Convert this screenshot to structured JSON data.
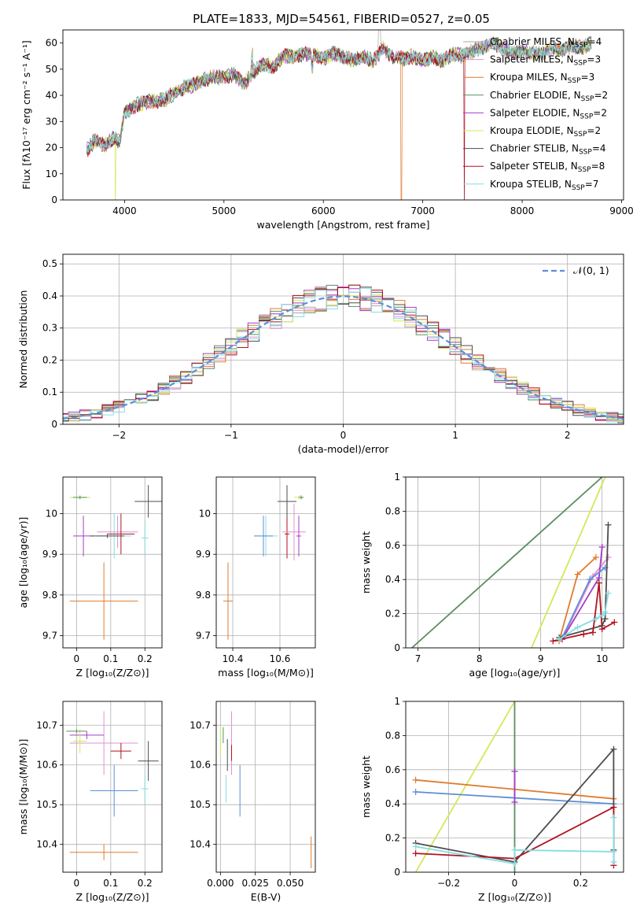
{
  "figure": {
    "title": "PLATE=1833, MJD=54561, FIBERID=0527, z=0.05"
  },
  "colors": {
    "chabrier_miles": "#a7a7a7",
    "salpeter_miles": "#e58fd0",
    "kroupa_miles": "#e07b2e",
    "chabrier_elodie": "#5a8f62",
    "salpeter_elodie": "#a43dc6",
    "kroupa_elodie": "#d2e85a",
    "chabrier_stelib": "#4d4d4d",
    "salpeter_stelib": "#b2121f",
    "kroupa_stelib": "#86dde0",
    "gaussian": "#5b8fd6",
    "grid": "#b0b0b0"
  },
  "chart_data": [
    {
      "id": "spectrum",
      "type": "line",
      "xlabel": "wavelength [Angstrom, rest frame]",
      "ylabel": "Flux [fλ10⁻¹⁷ erg cm⁻² s⁻¹ A⁻¹]",
      "xlim": [
        3380,
        9020
      ],
      "ylim": [
        0,
        65
      ],
      "xticks": [
        4000,
        5000,
        6000,
        7000,
        8000,
        9000
      ],
      "yticks": [
        0,
        10,
        20,
        30,
        40,
        50,
        60
      ],
      "grid": false,
      "legend_placement": "right",
      "legend": [
        {
          "label": "Chabrier MILES, N",
          "sub": "SSP",
          "tail": "=4",
          "color_key": "chabrier_miles"
        },
        {
          "label": "Salpeter MILES, N",
          "sub": "SSP",
          "tail": "=3",
          "color_key": "salpeter_miles"
        },
        {
          "label": "Kroupa MILES, N",
          "sub": "SSP",
          "tail": "=3",
          "color_key": "kroupa_miles"
        },
        {
          "label": "Chabrier ELODIE, N",
          "sub": "SSP",
          "tail": "=2",
          "color_key": "chabrier_elodie"
        },
        {
          "label": "Salpeter ELODIE, N",
          "sub": "SSP",
          "tail": "=2",
          "color_key": "salpeter_elodie"
        },
        {
          "label": "Kroupa ELODIE, N",
          "sub": "SSP",
          "tail": "=2",
          "color_key": "kroupa_elodie"
        },
        {
          "label": "Chabrier STELIB, N",
          "sub": "SSP",
          "tail": "=4",
          "color_key": "chabrier_stelib"
        },
        {
          "label": "Salpeter STELIB, N",
          "sub": "SSP",
          "tail": "=8",
          "color_key": "salpeter_stelib"
        },
        {
          "label": "Kroupa STELIB, N",
          "sub": "SSP",
          "tail": "=7",
          "color_key": "kroupa_stelib"
        }
      ],
      "series_envelope": {
        "x": [
          3620,
          3700,
          3800,
          3900,
          3950,
          4000,
          4100,
          4200,
          4300,
          4400,
          4500,
          4600,
          4700,
          4800,
          4900,
          5000,
          5100,
          5200,
          5300,
          5400,
          5500,
          5600,
          5700,
          5800,
          5900,
          6000,
          6100,
          6200,
          6300,
          6400,
          6500,
          6600,
          6700,
          6800,
          6900,
          7000,
          7100,
          7200,
          7300,
          7400,
          7500,
          7600,
          7700,
          7800,
          7900,
          8000,
          8100,
          8200,
          8300,
          8400,
          8500,
          8600,
          8700
        ],
        "y": [
          19,
          23,
          21,
          24,
          22,
          33,
          36,
          37,
          38,
          38,
          41,
          43,
          44,
          46,
          47,
          47,
          48,
          44,
          49,
          52,
          51,
          55,
          55,
          56,
          56,
          54,
          56,
          55,
          53,
          55,
          53,
          58,
          55,
          54,
          55,
          53,
          55,
          53,
          56,
          55,
          57,
          58,
          60,
          58,
          56,
          57,
          56,
          56,
          58,
          57,
          59,
          58,
          60
        ]
      },
      "series_dropouts": [
        {
          "x": 3910,
          "color_key": "kroupa_elodie"
        },
        {
          "x": 6785,
          "color_key": "kroupa_miles"
        },
        {
          "x": 7420,
          "color_key": "salpeter_stelib"
        }
      ]
    },
    {
      "id": "residual-histogram",
      "type": "line",
      "xlabel": "(data-model)/error",
      "ylabel": "Normed distribution",
      "xlim": [
        -2.5,
        2.5
      ],
      "ylim": [
        0,
        0.53
      ],
      "xticks": [
        -2,
        -1,
        0,
        1,
        2
      ],
      "yticks": [
        0.0,
        0.1,
        0.2,
        0.3,
        0.4,
        0.5
      ],
      "grid": true,
      "legend_placement": "top-right",
      "gaussian_label": "𝒩(0, 1)",
      "bin_width": 0.1
    },
    {
      "id": "z-vs-age",
      "type": "scatter",
      "xlabel": "Z [log₁₀(Z/Z⊙)]",
      "ylabel": "age  [log₁₀(age/yr)]",
      "xlim": [
        -0.04,
        0.25
      ],
      "ylim": [
        9.67,
        10.09
      ],
      "xticks": [
        0.0,
        0.1,
        0.2
      ],
      "yticks": [
        9.7,
        9.8,
        9.9,
        10.0
      ],
      "grid": true,
      "points": [
        {
          "x": 0.08,
          "y": 9.785,
          "xerr": 0.1,
          "yerr": 0.095,
          "color_key": "kroupa_miles"
        },
        {
          "x": 0.02,
          "y": 9.945,
          "xerr": 0.03,
          "yerr": 0.05,
          "color_key": "salpeter_elodie"
        },
        {
          "x": 0.12,
          "y": 9.955,
          "xerr": 0.06,
          "yerr": 0.04,
          "color_key": "salpeter_miles"
        },
        {
          "x": 0.11,
          "y": 9.945,
          "xerr": 0.05,
          "yerr": 0.055,
          "color_key": "kroupa_stelib"
        },
        {
          "x": 0.13,
          "y": 9.95,
          "xerr": 0.04,
          "yerr": 0.05,
          "color_key": "salpeter_stelib"
        },
        {
          "x": 0.2,
          "y": 9.94,
          "xerr": 0.01,
          "yerr": 0.04,
          "color_key": "kroupa_stelib"
        },
        {
          "x": 0.21,
          "y": 10.03,
          "xerr": 0.04,
          "yerr": 0.04,
          "color_key": "chabrier_stelib"
        },
        {
          "x": 0.01,
          "y": 10.04,
          "xerr": 0.03,
          "yerr": 0.005,
          "color_key": "kroupa_elodie"
        },
        {
          "x": 0.01,
          "y": 10.04,
          "xerr": 0.02,
          "yerr": 0.004,
          "color_key": "chabrier_elodie"
        },
        {
          "x": 0.09,
          "y": 9.945,
          "xerr": 0.05,
          "yerr": 0.005,
          "color_key": "chabrier_stelib"
        }
      ]
    },
    {
      "id": "mass-vs-age",
      "type": "scatter",
      "xlabel": "mass [log₁₀(M/M⊙)]",
      "ylabel": "",
      "xlim": [
        10.33,
        10.75
      ],
      "ylim": [
        9.67,
        10.09
      ],
      "xticks": [
        10.4,
        10.6
      ],
      "yticks": [
        9.7,
        9.8,
        9.9,
        10.0
      ],
      "grid": true,
      "points": [
        {
          "x": 10.38,
          "y": 9.785,
          "xerr": 0.02,
          "yerr": 0.095,
          "color_key": "kroupa_miles"
        },
        {
          "x": 10.54,
          "y": 9.945,
          "xerr": 0.05,
          "yerr": 0.05,
          "color_key": "kroupa_stelib"
        },
        {
          "x": 10.53,
          "y": 9.945,
          "xerr": 0.04,
          "yerr": 0.05,
          "color_key": "gaussian"
        },
        {
          "x": 10.63,
          "y": 9.95,
          "xerr": 0.01,
          "yerr": 0.06,
          "color_key": "salpeter_stelib"
        },
        {
          "x": 10.66,
          "y": 9.955,
          "xerr": 0.05,
          "yerr": 0.07,
          "color_key": "salpeter_miles"
        },
        {
          "x": 10.68,
          "y": 9.945,
          "xerr": 0.01,
          "yerr": 0.05,
          "color_key": "salpeter_elodie"
        },
        {
          "x": 10.63,
          "y": 10.03,
          "xerr": 0.04,
          "yerr": 0.04,
          "color_key": "chabrier_stelib"
        },
        {
          "x": 10.68,
          "y": 10.04,
          "xerr": 0.02,
          "yerr": 0.005,
          "color_key": "kroupa_elodie"
        },
        {
          "x": 10.69,
          "y": 10.04,
          "xerr": 0.01,
          "yerr": 0.005,
          "color_key": "chabrier_elodie"
        }
      ]
    },
    {
      "id": "age-vs-massweight",
      "type": "line",
      "xlabel": "age  [log₁₀(age/yr)]",
      "ylabel": "mass weight",
      "xlim": [
        6.8,
        10.35
      ],
      "ylim": [
        0,
        1
      ],
      "xticks": [
        7,
        8,
        9,
        10
      ],
      "yticks": [
        0.0,
        0.2,
        0.4,
        0.6,
        0.8,
        1.0
      ],
      "grid": true,
      "series": [
        {
          "color_key": "chabrier_elodie",
          "x": [
            6.9,
            10.0
          ],
          "y": [
            0.0,
            1.0
          ],
          "markers": false
        },
        {
          "color_key": "kroupa_elodie",
          "x": [
            8.85,
            10.05
          ],
          "y": [
            0.0,
            1.0
          ],
          "markers": false
        },
        {
          "color_key": "kroupa_miles",
          "x": [
            9.3,
            9.6,
            9.9
          ],
          "y": [
            0.04,
            0.43,
            0.53
          ],
          "markers": true
        },
        {
          "color_key": "salpeter_miles",
          "x": [
            9.35,
            9.85,
            10.1
          ],
          "y": [
            0.05,
            0.42,
            0.53
          ],
          "markers": true
        },
        {
          "color_key": "salpeter_elodie",
          "x": [
            9.35,
            9.95,
            10.0
          ],
          "y": [
            0.05,
            0.41,
            0.59
          ],
          "markers": true
        },
        {
          "color_key": "gaussian",
          "x": [
            9.35,
            9.8,
            10.05
          ],
          "y": [
            0.06,
            0.4,
            0.47
          ],
          "markers": true
        },
        {
          "color_key": "chabrier_stelib",
          "x": [
            9.3,
            10.0,
            10.05,
            10.1
          ],
          "y": [
            0.06,
            0.13,
            0.17,
            0.72
          ],
          "markers": true
        },
        {
          "color_key": "salpeter_stelib",
          "x": [
            9.2,
            9.7,
            9.85,
            9.95,
            10.0,
            10.2
          ],
          "y": [
            0.04,
            0.08,
            0.09,
            0.38,
            0.11,
            0.15
          ],
          "markers": true
        },
        {
          "color_key": "kroupa_stelib",
          "x": [
            9.3,
            9.6,
            9.9,
            10.0,
            10.05,
            10.1
          ],
          "y": [
            0.05,
            0.12,
            0.17,
            0.19,
            0.21,
            0.32
          ],
          "markers": true
        }
      ]
    },
    {
      "id": "z-vs-mass",
      "type": "scatter",
      "xlabel": "Z [log₁₀(Z/Z⊙)]",
      "ylabel": "mass [log₁₀(M/M⊙)]",
      "xlim": [
        -0.04,
        0.25
      ],
      "ylim": [
        10.33,
        10.76
      ],
      "xticks": [
        0.0,
        0.1,
        0.2
      ],
      "yticks": [
        10.4,
        10.5,
        10.6,
        10.7
      ],
      "grid": true,
      "points": [
        {
          "x": 0.08,
          "y": 10.38,
          "xerr": 0.1,
          "yerr": 0.02,
          "color_key": "kroupa_miles"
        },
        {
          "x": 0.11,
          "y": 10.535,
          "xerr": 0.07,
          "yerr": 0.065,
          "color_key": "gaussian"
        },
        {
          "x": 0.2,
          "y": 10.54,
          "xerr": 0.01,
          "yerr": 0.035,
          "color_key": "kroupa_stelib"
        },
        {
          "x": 0.08,
          "y": 10.655,
          "xerr": 0.1,
          "yerr": 0.08,
          "color_key": "salpeter_miles"
        },
        {
          "x": 0.13,
          "y": 10.635,
          "xerr": 0.03,
          "yerr": 0.02,
          "color_key": "salpeter_stelib"
        },
        {
          "x": 0.21,
          "y": 10.61,
          "xerr": 0.03,
          "yerr": 0.05,
          "color_key": "chabrier_stelib"
        },
        {
          "x": 0.03,
          "y": 10.675,
          "xerr": 0.05,
          "yerr": 0.01,
          "color_key": "salpeter_elodie"
        },
        {
          "x": 0.01,
          "y": 10.66,
          "xerr": 0.02,
          "yerr": 0.03,
          "color_key": "kroupa_elodie"
        },
        {
          "x": 0.0,
          "y": 10.685,
          "xerr": 0.03,
          "yerr": 0.005,
          "color_key": "chabrier_elodie"
        }
      ]
    },
    {
      "id": "ebv-vs-mass",
      "type": "scatter",
      "xlabel": "E(B-V)",
      "ylabel": "",
      "xlim": [
        -0.003,
        0.068
      ],
      "ylim": [
        10.33,
        10.76
      ],
      "xticks": [
        0.0,
        0.025,
        0.05
      ],
      "xticklabels": [
        "0.000",
        "0.025",
        "0.050"
      ],
      "yticks": [
        10.4,
        10.5,
        10.6,
        10.7
      ],
      "grid": true,
      "points": [
        {
          "x": 0.0,
          "y": 10.66,
          "xerr": 0.0,
          "yerr": 0.04,
          "color_key": "kroupa_elodie"
        },
        {
          "x": 0.002,
          "y": 10.675,
          "xerr": 0.0,
          "yerr": 0.02,
          "color_key": "chabrier_elodie"
        },
        {
          "x": 0.004,
          "y": 10.54,
          "xerr": 0.0,
          "yerr": 0.035,
          "color_key": "kroupa_stelib"
        },
        {
          "x": 0.005,
          "y": 10.625,
          "xerr": 0.0,
          "yerr": 0.04,
          "color_key": "chabrier_stelib"
        },
        {
          "x": 0.008,
          "y": 10.655,
          "xerr": 0.0,
          "yerr": 0.08,
          "color_key": "salpeter_miles"
        },
        {
          "x": 0.008,
          "y": 10.63,
          "xerr": 0.0,
          "yerr": 0.02,
          "color_key": "salpeter_stelib"
        },
        {
          "x": 0.014,
          "y": 10.535,
          "xerr": 0.0,
          "yerr": 0.065,
          "color_key": "gaussian"
        },
        {
          "x": 0.065,
          "y": 10.38,
          "xerr": 0.0,
          "yerr": 0.04,
          "color_key": "kroupa_miles"
        }
      ]
    },
    {
      "id": "z-vs-massweight",
      "type": "line",
      "xlabel": "Z [log₁₀(Z/Z⊙)]",
      "ylabel": "mass weight",
      "xlim": [
        -0.33,
        0.33
      ],
      "ylim": [
        0,
        1
      ],
      "xticks": [
        -0.2,
        0.0,
        0.2
      ],
      "yticks": [
        0.0,
        0.2,
        0.4,
        0.6,
        0.8,
        1.0
      ],
      "grid": true,
      "series": [
        {
          "color_key": "kroupa_elodie",
          "x": [
            -0.3,
            0.0
          ],
          "y": [
            0.0,
            1.0
          ],
          "markers": false
        },
        {
          "color_key": "chabrier_elodie",
          "x": [
            0.0,
            0.0
          ],
          "y": [
            0.0,
            1.0
          ],
          "markers": false
        },
        {
          "color_key": "kroupa_miles",
          "x": [
            -0.3,
            0.3
          ],
          "y": [
            0.54,
            0.43
          ],
          "markers": true
        },
        {
          "color_key": "gaussian",
          "x": [
            -0.3,
            0.3
          ],
          "y": [
            0.47,
            0.4
          ],
          "markers": true
        },
        {
          "color_key": "salpeter_elodie",
          "x": [
            0.0,
            0.0
          ],
          "y": [
            0.41,
            0.59
          ],
          "markers": true
        },
        {
          "color_key": "chabrier_stelib",
          "x": [
            -0.3,
            0.0,
            0.3,
            0.3
          ],
          "y": [
            0.17,
            0.06,
            0.72,
            0.13
          ],
          "markers": true
        },
        {
          "color_key": "salpeter_stelib",
          "x": [
            -0.3,
            0.0,
            0.3,
            0.3
          ],
          "y": [
            0.11,
            0.08,
            0.38,
            0.04
          ],
          "markers": true
        },
        {
          "color_key": "kroupa_stelib",
          "x": [
            -0.3,
            0.0,
            0.0,
            0.3,
            0.3,
            0.3
          ],
          "y": [
            0.15,
            0.05,
            0.13,
            0.12,
            0.32,
            0.06
          ],
          "markers": true
        }
      ]
    }
  ]
}
